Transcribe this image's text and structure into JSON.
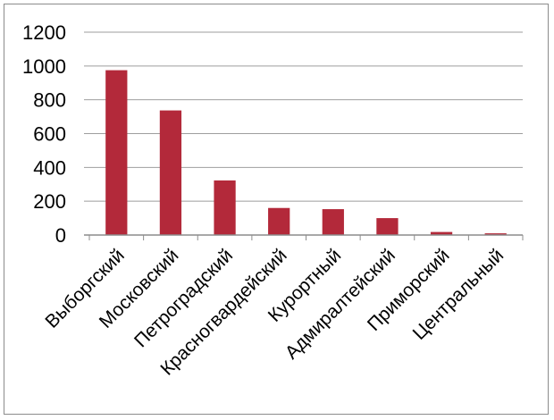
{
  "chart_data": {
    "type": "bar",
    "title": "",
    "xlabel": "",
    "ylabel": "",
    "categories": [
      "Выборгский",
      "Московский",
      "Петроградский",
      "Красногвардейский",
      "Курортный",
      "Адмиралтейский",
      "Приморский",
      "Центральный"
    ],
    "values": [
      975,
      737,
      323,
      160,
      153,
      100,
      18,
      10
    ],
    "ylim": [
      0,
      1200
    ],
    "yticks": [
      "0",
      "200",
      "400",
      "600",
      "800",
      "1000",
      "1200"
    ],
    "grid": true,
    "legend": "none",
    "colors": {
      "bar": "#b3293a",
      "grid": "#9e9e9e",
      "axis": "#8c8c8c",
      "frame": "#8c8c8c"
    }
  }
}
